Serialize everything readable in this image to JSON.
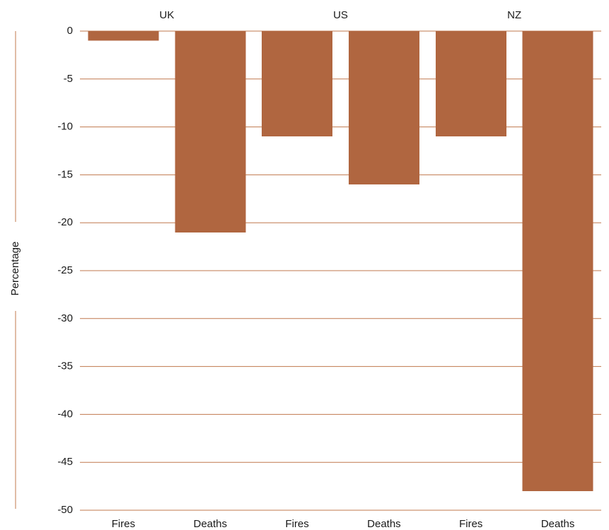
{
  "chart_data": {
    "type": "bar",
    "groups": [
      "UK",
      "US",
      "NZ"
    ],
    "categories": [
      "Fires",
      "Deaths",
      "Fires",
      "Deaths",
      "Fires",
      "Deaths"
    ],
    "series": [
      {
        "values": [
          -1,
          -21,
          -11,
          -16,
          -11,
          -48
        ]
      }
    ],
    "title": "",
    "xlabel": "",
    "ylabel": "Percentage",
    "ylim": [
      -50,
      0
    ],
    "yticks": [
      0,
      -5,
      -10,
      -15,
      -20,
      -25,
      -30,
      -35,
      -40,
      -45,
      -50
    ],
    "grid": true,
    "legend": "none",
    "bar_color": "#b06640",
    "grid_color": "#c0784e"
  }
}
